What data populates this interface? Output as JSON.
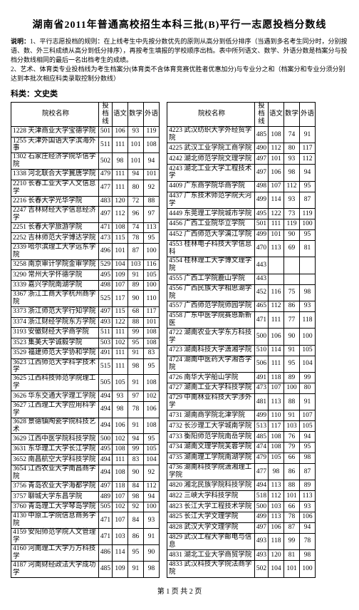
{
  "title": "湖南省2011年普通高校招生本科三批(B)平行一志愿投档分数线",
  "desc_label": "说明：",
  "desc_body": "1、平行志愿投档的规则：在上线考生中先按分数优先的原则从高分到低分排序（当遇到多名考生同分时，分别按语、数、外三科成绩从高分到低分排序），再按考生填报的学校顺序出档。表中所列语文、数学、外语分数是档案分与投档分数线相同的最后一名出档考生的成绩。\n2、艺术、体育类专业投档线为考生档案分(体育类不含体育竞赛优胜者优惠加分)与专业分之和（档案分和专业分须分别达到本批次相应科类录取控制分数线）",
  "subject_label": "科类：文史类",
  "headers": [
    "院校名称",
    "投档线",
    "语文",
    "数学",
    "外语"
  ],
  "left_rows": [
    [
      "1228 天津商业大学宝德学院",
      "501",
      "106",
      "93",
      "119"
    ],
    [
      "1255 天津外国语大学滨海外事",
      "511",
      "111",
      "101",
      "108"
    ],
    [
      "1302 石家庄经济学院华信学院",
      "502",
      "98",
      "101",
      "94"
    ],
    [
      "1338 河北联合大学冀唐学院",
      "479",
      "111",
      "94",
      "101"
    ],
    [
      "2210 长春工业大学人文信息学",
      "477",
      "111",
      "80",
      "92"
    ],
    [
      "2216 长春大学光华学院",
      "483",
      "120",
      "72",
      "88"
    ],
    [
      "2247 吉林财经大学信息经济学",
      "497",
      "112",
      "96",
      "97"
    ],
    [
      "2251 长春大学旅游学院",
      "471",
      "108",
      "74",
      "113"
    ],
    [
      "2252 吉林师范大学博达学院",
      "473",
      "115",
      "78",
      "95"
    ],
    [
      "2339 哈尔滨理工大学远东学院",
      "496",
      "101",
      "87",
      "100"
    ],
    [
      "3258 南京审计学院金审学院",
      "529",
      "104",
      "103",
      "116"
    ],
    [
      "3290 常州大学怀德学院",
      "495",
      "109",
      "91",
      "105"
    ],
    [
      "3339 嘉兴学院南湖学院",
      "498",
      "107",
      "89",
      "100"
    ],
    [
      "3367 浙江工商大学杭州商学院",
      "525",
      "117",
      "90",
      "110"
    ],
    [
      "3373 浙江师范大学行知学院",
      "497",
      "115",
      "68",
      "117"
    ],
    [
      "3374 浙江财经学院东方学院",
      "493",
      "122",
      "88",
      "101"
    ],
    [
      "3193 安徽财经大学商学院",
      "511",
      "111",
      "99",
      "108"
    ],
    [
      "3523 集美大学诚毅学院",
      "503",
      "102",
      "95",
      "108"
    ],
    [
      "3529 福建师范大学协和学院",
      "491",
      "111",
      "91",
      "83"
    ],
    [
      "3623 江西师范大学科学技术学",
      "515",
      "111",
      "98",
      "95"
    ],
    [
      "3625 江西科技师范学院理工学",
      "505",
      "105",
      "91",
      "108"
    ],
    [
      "3626 华东交通大学理工学院",
      "494",
      "93",
      "97",
      "102"
    ],
    [
      "3627 江西理工大学应用科学学",
      "494",
      "98",
      "78",
      "106"
    ],
    [
      "3628 景德镇陶瓷学院科技艺术",
      "494",
      "106",
      "91",
      "108"
    ],
    [
      "3629 江西中医学院科技学院",
      "500",
      "102",
      "94",
      "95"
    ],
    [
      "3631 东华理工大学长江学院",
      "495",
      "108",
      "99",
      "105"
    ],
    [
      "3652 南昌航空大学科技学院",
      "494",
      "111",
      "83",
      "104"
    ],
    [
      "3654 江西农业大学南昌商学院",
      "494",
      "108",
      "90",
      "92"
    ],
    [
      "3756 青岛农业大学海都学院",
      "497",
      "118",
      "84",
      "112"
    ],
    [
      "3757 聊城大学东昌学院",
      "489",
      "107",
      "98",
      "94"
    ],
    [
      "3760 青岛理工大学琴岛学院",
      "505",
      "102",
      "92",
      "100"
    ],
    [
      "4130 中原工学院信息商务学院",
      "471",
      "107",
      "84",
      "93"
    ],
    [
      "4159 安阳师范学院人文管理学",
      "471",
      "103",
      "86",
      "91"
    ],
    [
      "4160 河南理工大学万方科技学",
      "486",
      "114",
      "95",
      "90"
    ],
    [
      "4187 河南财经政法大学成功学",
      "485",
      "109",
      "91",
      "98"
    ]
  ],
  "right_rows": [
    [
      "4223 武汉纺织大学外经贸学院",
      "485",
      "108",
      "74",
      "91"
    ],
    [
      "4225 武汉工业学院工商学院",
      "490",
      "112",
      "80",
      "117"
    ],
    [
      "4242 湖北师范学院文理学院",
      "497",
      "101",
      "93",
      "112"
    ],
    [
      "4243 湖北工业大学工程技术学",
      "497",
      "106",
      "98",
      "94"
    ],
    [
      "4409 广东商学院华商学院",
      "498",
      "107",
      "112",
      "95"
    ],
    [
      "4437 广东技术师范学院天河学",
      "499",
      "114",
      "93",
      "87"
    ],
    [
      "4449 东莞理工学院城市学院",
      "495",
      "122",
      "73",
      "119"
    ],
    [
      "4456 广西工业院华立学院",
      "501",
      "111",
      "119",
      "100"
    ],
    [
      "4452 广西师范大学漓江学院",
      "499",
      "101",
      "90",
      "95"
    ],
    [
      "4553 桂林电子科技大学信息科",
      "470",
      "113",
      "69",
      "81"
    ],
    [
      "4554 桂林理工大学博文理学院",
      "443",
      "",
      "",
      ""
    ],
    [
      "4555 广西工学院鹿山学院",
      "443",
      "",
      "",
      ""
    ],
    [
      "4556 广西民族大学相思湖学院",
      "452",
      "116",
      "75",
      "98"
    ],
    [
      "4557 广西师范学院师园学院",
      "465",
      "112",
      "86",
      "93"
    ],
    [
      "4558 广东中医学院赛恩斯新医",
      "471",
      "111",
      "77",
      "118"
    ],
    [
      "4722 湖南农业大学东方科技学",
      "500",
      "106",
      "90",
      "100"
    ],
    [
      "4723 湖南科技大学潇湘学院",
      "510",
      "114",
      "91",
      "105"
    ],
    [
      "4724 湖南中医药大学湘杏学院",
      "506",
      "111",
      "95",
      "104"
    ],
    [
      "4726 南华大学船山学院",
      "491",
      "118",
      "89",
      "99"
    ],
    [
      "4727 湖南工业大学科技学院",
      "473",
      "107",
      "100",
      "80"
    ],
    [
      "4729 中南林业科技大学涉外学",
      "481",
      "113",
      "88",
      "91"
    ],
    [
      "4731 湖南商学院北津学院",
      "499",
      "110",
      "91",
      "107"
    ],
    [
      "4732 长沙理工大学城南学院",
      "513",
      "117",
      "103",
      "105"
    ],
    [
      "4733 衡阳师范学院南岳学院",
      "485",
      "108",
      "76",
      "94"
    ],
    [
      "4734 湖南文理学院芙蓉学院",
      "474",
      "108",
      "79",
      "95"
    ],
    [
      "4735 湖南理工学院南湖学院",
      "479",
      "105",
      "66",
      "98"
    ],
    [
      "4736 湖南科技学院潇湘理工学院",
      "477",
      "98",
      "86",
      "87"
    ],
    [
      "4820 湘北民族学院科技学院",
      "494",
      "113",
      "88",
      "89"
    ],
    [
      "4822 三峡大学科技学院",
      "518",
      "112",
      "101",
      "113"
    ],
    [
      "4823 长江大学工程技术学院",
      "500",
      "103",
      "66",
      "93"
    ],
    [
      "4825 长江大学文理学院",
      "499",
      "113",
      "78",
      "106"
    ],
    [
      "4828 武汉大学文理学院",
      "497",
      "106",
      "87",
      "94"
    ],
    [
      "4829 武汉工程大学邮电与信息",
      "493",
      "118",
      "99",
      "78"
    ],
    [
      "4831 湖北工业大学商贸学院",
      "493",
      "120",
      "81",
      "98"
    ],
    [
      "4833 武汉科技大学院法商学院",
      "502",
      "104",
      "101",
      "100"
    ]
  ],
  "pager": "第 1 页  共 2 页"
}
